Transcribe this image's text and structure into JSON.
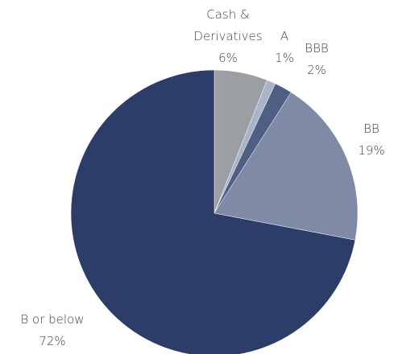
{
  "chart_data": {
    "type": "pie",
    "categories": [
      "Cash & Derivatives",
      "A",
      "BBB",
      "BB",
      "B or below"
    ],
    "values": [
      6,
      1,
      2,
      19,
      72
    ],
    "value_labels": [
      "6%",
      "1%",
      "2%",
      "19%",
      "72%"
    ],
    "colors": [
      "#9b9ea3",
      "#aab4c8",
      "#4f5e83",
      "#7e8aa6",
      "#2b3d68"
    ]
  }
}
